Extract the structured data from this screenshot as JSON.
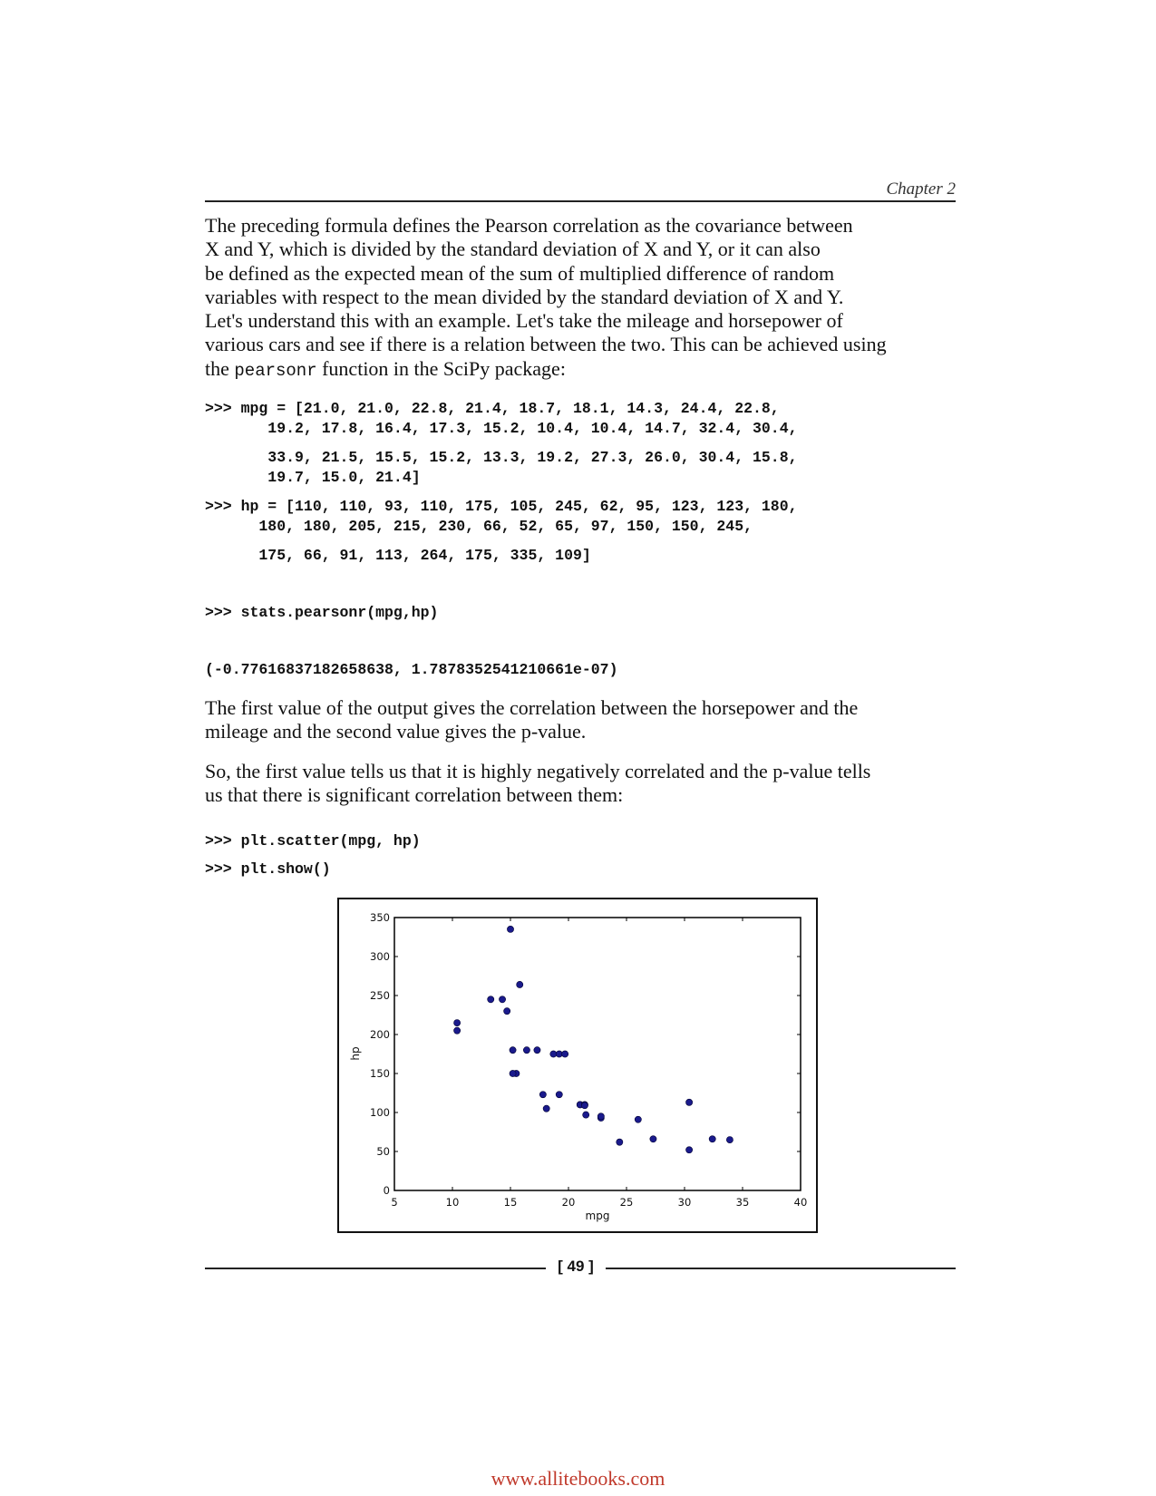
{
  "header": {
    "chapter": "Chapter 2"
  },
  "intro": {
    "lines": [
      "The preceding formula defines the Pearson correlation as the covariance between",
      "X and Y, which is divided by the standard deviation of X and Y, or it can also",
      "be defined as the expected mean of the sum of multiplied difference of random",
      "variables with respect to the mean divided by the standard deviation of X and Y.",
      "Let's understand this with an example. Let's take the mileage and horsepower of",
      "various cars and see if there is a relation between the two. This can be achieved using"
    ],
    "last_line_before": "the ",
    "function_name": "pearsonr",
    "last_line_after": " function in the SciPy package:"
  },
  "code1": {
    "mpg_lines": [
      ">>> mpg = [21.0, 21.0, 22.8, 21.4, 18.7, 18.1, 14.3, 24.4, 22.8,",
      "       19.2, 17.8, 16.4, 17.3, 15.2, 10.4, 10.4, 14.7, 32.4, 30.4,",
      "       33.9, 21.5, 15.5, 15.2, 13.3, 19.2, 27.3, 26.0, 30.4, 15.8,",
      "       19.7, 15.0, 21.4]"
    ],
    "hp_lines": [
      ">>> hp = [110, 110, 93, 110, 175, 105, 245, 62, 95, 123, 123, 180,",
      "      180, 180, 205, 215, 230, 66, 52, 65, 97, 150, 150, 245,",
      "      175, 66, 91, 113, 264, 175, 335, 109]"
    ],
    "call": ">>> stats.pearsonr(mpg,hp)",
    "output": "(-0.77616837182658638, 1.7878352541210661e-07)"
  },
  "para2": {
    "lines": [
      "The first value of the output gives the correlation between the horsepower and the",
      "mileage and the second value gives the p-value."
    ]
  },
  "para3": {
    "lines": [
      "So, the first value tells us that it is highly negatively correlated and the p-value tells",
      "us that there is significant correlation between them:"
    ]
  },
  "code2": {
    "lines": [
      ">>> plt.scatter(mpg, hp)",
      ">>> plt.show()"
    ]
  },
  "chart_data": {
    "type": "scatter",
    "xlabel": "mpg",
    "ylabel": "hp",
    "xlim": [
      5,
      40
    ],
    "ylim": [
      0,
      350
    ],
    "xticks": [
      5,
      10,
      15,
      20,
      25,
      30,
      35,
      40
    ],
    "yticks": [
      0,
      50,
      100,
      150,
      200,
      250,
      300,
      350
    ],
    "grid": false,
    "marker_color": "#1a1a8c",
    "x": [
      21.0,
      21.0,
      22.8,
      21.4,
      18.7,
      18.1,
      14.3,
      24.4,
      22.8,
      19.2,
      17.8,
      16.4,
      17.3,
      15.2,
      10.4,
      10.4,
      14.7,
      32.4,
      30.4,
      33.9,
      21.5,
      15.5,
      15.2,
      13.3,
      19.2,
      27.3,
      26.0,
      30.4,
      15.8,
      19.7,
      15.0,
      21.4
    ],
    "y": [
      110,
      110,
      93,
      110,
      175,
      105,
      245,
      62,
      95,
      123,
      123,
      180,
      180,
      180,
      205,
      215,
      230,
      66,
      52,
      65,
      97,
      150,
      150,
      245,
      175,
      66,
      91,
      113,
      264,
      175,
      335,
      109
    ]
  },
  "footer": {
    "page_number": "[ 49 ]",
    "watermark": "www.allitebooks.com"
  }
}
